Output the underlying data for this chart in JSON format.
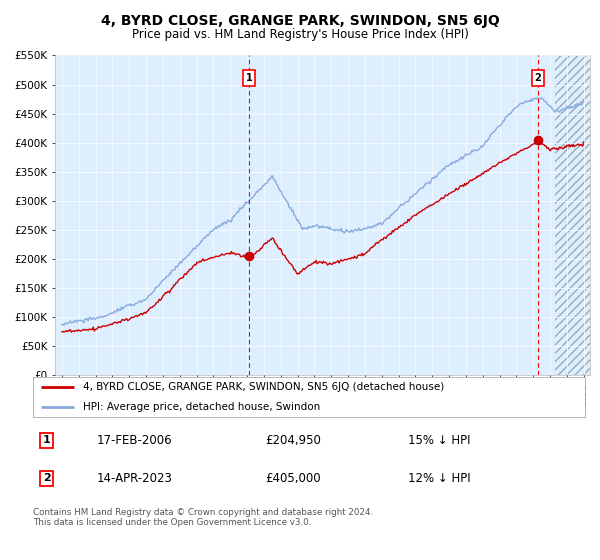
{
  "title": "4, BYRD CLOSE, GRANGE PARK, SWINDON, SN5 6JQ",
  "subtitle": "Price paid vs. HM Land Registry's House Price Index (HPI)",
  "ylim": [
    0,
    550000
  ],
  "yticks": [
    0,
    50000,
    100000,
    150000,
    200000,
    250000,
    300000,
    350000,
    400000,
    450000,
    500000,
    550000
  ],
  "ytick_labels": [
    "£0",
    "£50K",
    "£100K",
    "£150K",
    "£200K",
    "£250K",
    "£300K",
    "£350K",
    "£400K",
    "£450K",
    "£500K",
    "£550K"
  ],
  "background_color": "#ffffff",
  "plot_bg_color": "#ddeeff",
  "hpi_color": "#88aadd",
  "price_color": "#cc0000",
  "sale1_year": 2006.12,
  "sale1_price": 204950,
  "sale1_hpi_diff": "15% ↓ HPI",
  "sale1_date": "17-FEB-2006",
  "sale2_year": 2023.29,
  "sale2_price": 405000,
  "sale2_hpi_diff": "12% ↓ HPI",
  "sale2_date": "14-APR-2023",
  "legend_label1": "4, BYRD CLOSE, GRANGE PARK, SWINDON, SN5 6JQ (detached house)",
  "legend_label2": "HPI: Average price, detached house, Swindon",
  "footer": "Contains HM Land Registry data © Crown copyright and database right 2024.\nThis data is licensed under the Open Government Licence v3.0.",
  "xmin": 1994.6,
  "xmax": 2026.4,
  "hatch_start": 2024.3
}
